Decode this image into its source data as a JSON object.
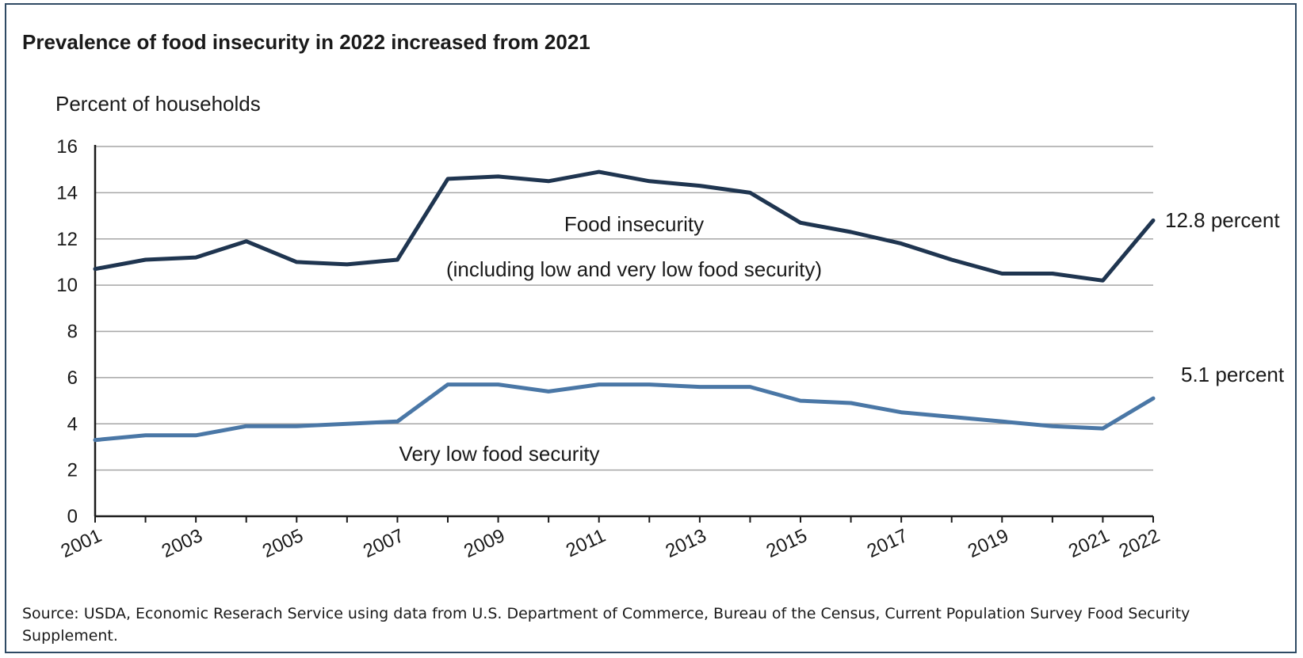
{
  "title": "Prevalence of food insecurity in 2022 increased from 2021",
  "source": "Source: USDA, Economic Reserach Service using data from U.S. Department of Commerce, Bureau of the Census, Current Population Survey Food Security Supplement.",
  "chart_data": {
    "type": "line",
    "title": "Prevalence of food insecurity in 2022 increased from 2021",
    "ylabel": "Percent of households",
    "xlabel": "",
    "ylim": [
      0,
      16
    ],
    "yticks": [
      0,
      2,
      4,
      6,
      8,
      10,
      12,
      14,
      16
    ],
    "xlim": [
      2001,
      2022
    ],
    "xtick_labels": [
      "2001",
      "2003",
      "2005",
      "2007",
      "2009",
      "2011",
      "2013",
      "2015",
      "2017",
      "2019",
      "2021",
      "2022"
    ],
    "grid": true,
    "x": [
      2001,
      2002,
      2003,
      2004,
      2005,
      2006,
      2007,
      2008,
      2009,
      2010,
      2011,
      2012,
      2013,
      2014,
      2015,
      2016,
      2017,
      2018,
      2019,
      2020,
      2021,
      2022
    ],
    "series": [
      {
        "name": "Food insecurity",
        "label_lines": [
          "Food insecurity",
          "(including low and very low food security)"
        ],
        "color": "#1f3550",
        "values": [
          10.7,
          11.1,
          11.2,
          11.9,
          11.0,
          10.9,
          11.1,
          14.6,
          14.7,
          14.5,
          14.9,
          14.5,
          14.3,
          14.0,
          12.7,
          12.3,
          11.8,
          11.1,
          10.5,
          10.5,
          10.2,
          12.8
        ],
        "end_label": "12.8 percent"
      },
      {
        "name": "Very low food security",
        "label_lines": [
          "Very low food security"
        ],
        "color": "#4a77a6",
        "values": [
          3.3,
          3.5,
          3.5,
          3.9,
          3.9,
          4.0,
          4.1,
          5.7,
          5.7,
          5.4,
          5.7,
          5.7,
          5.6,
          5.6,
          5.0,
          4.9,
          4.5,
          4.3,
          4.1,
          3.9,
          3.8,
          5.1
        ],
        "end_label": "5.1  percent"
      }
    ]
  }
}
